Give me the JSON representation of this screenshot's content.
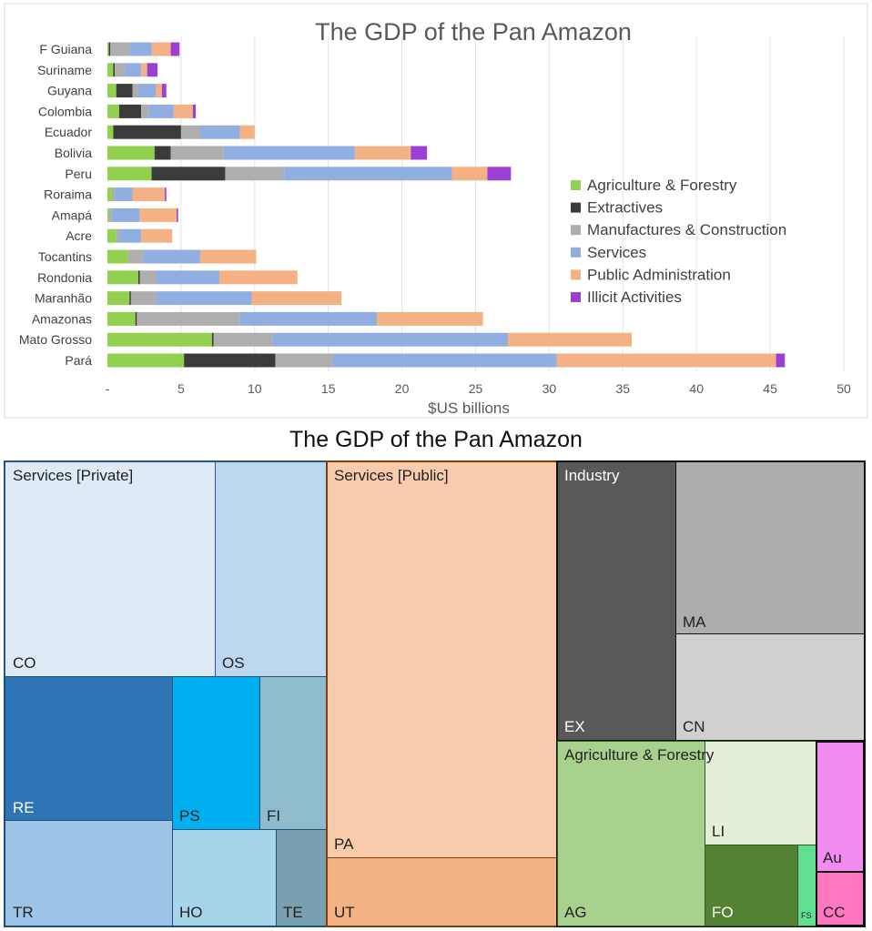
{
  "chart_data": [
    {
      "type": "bar",
      "orientation": "horizontal",
      "stacked": true,
      "title": "The GDP of the Pan Amazon",
      "xlabel": "$US billions",
      "ylabel": "",
      "xlim": [
        0,
        50
      ],
      "xticks": [
        "-",
        "5",
        "10",
        "15",
        "20",
        "25",
        "30",
        "35",
        "40",
        "45",
        "50"
      ],
      "grid": true,
      "legend_position": "right",
      "categories": [
        "F Guiana",
        "Suriname",
        "Guyana",
        "Colombia",
        "Ecuador",
        "Bolivia",
        "Peru",
        "Roraima",
        "Amapá",
        "Acre",
        "Tocantins",
        "Rondonia",
        "Maranhão",
        "Amazonas",
        "Mato Grosso",
        "Pará"
      ],
      "series": [
        {
          "name": "Agriculture & Forestry",
          "color": "#92d050",
          "values": [
            0.1,
            0.4,
            0.6,
            0.8,
            0.4,
            3.2,
            3.0,
            0.3,
            0.1,
            0.6,
            1.4,
            2.1,
            1.5,
            1.9,
            7.1,
            5.2
          ]
        },
        {
          "name": "Extractives",
          "color": "#3b3b3b",
          "values": [
            0.1,
            0.1,
            1.1,
            1.5,
            4.6,
            1.1,
            5.0,
            0.0,
            0.0,
            0.0,
            0.0,
            0.1,
            0.1,
            0.1,
            0.1,
            6.2
          ]
        },
        {
          "name": "Manufactures & Construction",
          "color": "#aeaeae",
          "values": [
            1.3,
            0.7,
            0.4,
            0.5,
            1.3,
            3.6,
            4.0,
            0.2,
            0.2,
            0.2,
            1.0,
            1.1,
            1.7,
            7.0,
            4.0,
            3.9
          ]
        },
        {
          "name": "Services",
          "color": "#91aee0",
          "values": [
            1.5,
            1.1,
            1.2,
            1.7,
            2.7,
            8.9,
            11.4,
            1.2,
            1.9,
            1.5,
            3.9,
            4.3,
            6.5,
            9.3,
            16.0,
            15.2
          ]
        },
        {
          "name": "Public Administration",
          "color": "#f4b183",
          "values": [
            1.3,
            0.4,
            0.4,
            1.3,
            1.0,
            3.8,
            2.4,
            2.2,
            2.5,
            2.1,
            3.8,
            5.3,
            6.1,
            7.2,
            8.4,
            14.9
          ]
        },
        {
          "name": "Illicit Activities",
          "color": "#9b3fd5",
          "values": [
            0.6,
            0.7,
            0.3,
            0.2,
            0.0,
            1.1,
            1.6,
            0.1,
            0.1,
            0.0,
            0.0,
            0.0,
            0.0,
            0.0,
            0.0,
            0.6
          ]
        }
      ]
    },
    {
      "type": "treemap",
      "title": "The GDP of the Pan Amazon",
      "groups": [
        {
          "name": "Services [Private]",
          "color": "#bdd7ee",
          "cells": [
            {
              "label": "CO",
              "color": "#deebf7"
            },
            {
              "label": "OS",
              "color": "#bdd7ee"
            },
            {
              "label": "RE",
              "color": "#2e75b6",
              "text_color": "#ffffff"
            },
            {
              "label": "PS",
              "color": "#00b0f0"
            },
            {
              "label": "FI",
              "color": "#8fbccc"
            },
            {
              "label": "TR",
              "color": "#9dc3e6"
            },
            {
              "label": "HO",
              "color": "#a6d5ea"
            },
            {
              "label": "TE",
              "color": "#7a9fb0"
            }
          ]
        },
        {
          "name": "Services [Public]",
          "color": "#f8cbad",
          "cells": [
            {
              "label": "PA",
              "color": "#f8cbad"
            },
            {
              "label": "UT",
              "color": "#f4b183"
            }
          ]
        },
        {
          "name": "Industry",
          "color": "#595959",
          "cells": [
            {
              "label": "EX",
              "color": "#595959",
              "text_color": "#ffffff"
            },
            {
              "label": "MA",
              "color": "#adadad"
            },
            {
              "label": "CN",
              "color": "#d0d0d0"
            }
          ]
        },
        {
          "name": "Agriculture & Forestry",
          "color": "#a9d18e",
          "cells": [
            {
              "label": "AG",
              "color": "#a9d18e"
            },
            {
              "label": "LI",
              "color": "#e2f0d9"
            },
            {
              "label": "FO",
              "color": "#548235",
              "text_color": "#ffffff"
            },
            {
              "label": "FS",
              "color": "#5fdf8f"
            },
            {
              "label": "Au",
              "color": "#f28cf0"
            },
            {
              "label": "CC",
              "color": "#ff77c0"
            }
          ]
        }
      ]
    }
  ]
}
